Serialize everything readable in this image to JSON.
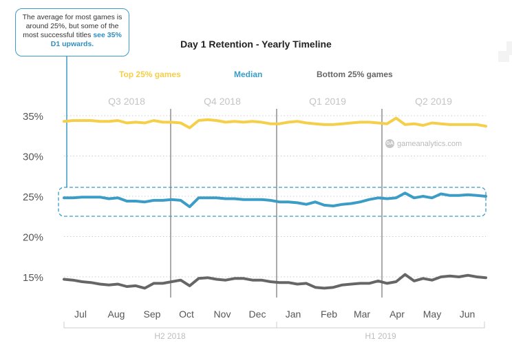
{
  "callout": {
    "text": "The average for most games is around 25%, but some of the most successful titles",
    "highlight": "see 35% D1 upwards."
  },
  "watermark": "gameanalytics.com",
  "colors": {
    "top": "#f5cf4a",
    "median": "#3b9cc6",
    "bottom": "#666666",
    "grid": "#cccccc",
    "quarter_line": "#aaaaaa"
  },
  "chart_data": {
    "type": "line",
    "title": "Day 1 Retention - Yearly Timeline",
    "ylim": [
      12.5,
      36.5
    ],
    "yticks": [
      {
        "value": 35,
        "label": "35%"
      },
      {
        "value": 30,
        "label": "30%"
      },
      {
        "value": 25,
        "label": "25%"
      },
      {
        "value": 20,
        "label": "20%"
      },
      {
        "value": 15,
        "label": "15%"
      }
    ],
    "months": [
      "Jul",
      "Aug",
      "Sep",
      "Oct",
      "Nov",
      "Dec",
      "Jan",
      "Feb",
      "Mar",
      "Apr",
      "May",
      "Jun"
    ],
    "quarters": [
      "Q3 2018",
      "Q4 2018",
      "Q1 2019",
      "Q2 2019"
    ],
    "halves": [
      "H2 2018",
      "H1 2019"
    ],
    "series": [
      {
        "name": "Top 25% games",
        "key": "top",
        "values": [
          34.3,
          34.4,
          34.4,
          34.4,
          34.3,
          34.3,
          34.4,
          34.1,
          34.2,
          34.1,
          34.4,
          34.2,
          34.2,
          34.1,
          33.5,
          34.4,
          34.5,
          34.4,
          34.2,
          34.3,
          34.2,
          34.3,
          34.2,
          34.0,
          34.0,
          34.2,
          34.3,
          34.1,
          34.0,
          33.9,
          33.9,
          34.0,
          34.1,
          34.2,
          34.2,
          34.1,
          34.0,
          34.7,
          33.9,
          34.0,
          33.8,
          34.1,
          34.0,
          33.9,
          33.9,
          33.9,
          33.9,
          33.7
        ]
      },
      {
        "name": "Median",
        "key": "median",
        "values": [
          24.8,
          24.8,
          24.9,
          24.9,
          24.9,
          24.7,
          24.8,
          24.4,
          24.4,
          24.3,
          24.5,
          24.5,
          24.6,
          24.5,
          23.7,
          24.8,
          24.8,
          24.8,
          24.7,
          24.7,
          24.6,
          24.6,
          24.6,
          24.5,
          24.3,
          24.3,
          24.2,
          24.0,
          24.3,
          23.9,
          23.8,
          24.0,
          24.1,
          24.3,
          24.6,
          24.8,
          24.7,
          24.8,
          25.4,
          24.8,
          25.0,
          24.8,
          25.3,
          25.1,
          25.1,
          25.2,
          25.1,
          25.0
        ]
      },
      {
        "name": "Bottom 25% games",
        "key": "bottom",
        "values": [
          14.7,
          14.6,
          14.4,
          14.3,
          14.1,
          14.0,
          14.1,
          13.8,
          13.9,
          13.6,
          14.2,
          14.2,
          14.4,
          14.6,
          13.9,
          14.8,
          14.9,
          14.7,
          14.6,
          14.8,
          14.8,
          14.6,
          14.6,
          14.4,
          14.3,
          14.3,
          14.1,
          14.2,
          13.7,
          13.6,
          13.7,
          14.0,
          14.1,
          14.2,
          14.2,
          14.5,
          14.2,
          14.4,
          15.3,
          14.5,
          14.8,
          14.6,
          15.0,
          15.1,
          15.0,
          15.2,
          15.0,
          14.9
        ]
      }
    ]
  }
}
